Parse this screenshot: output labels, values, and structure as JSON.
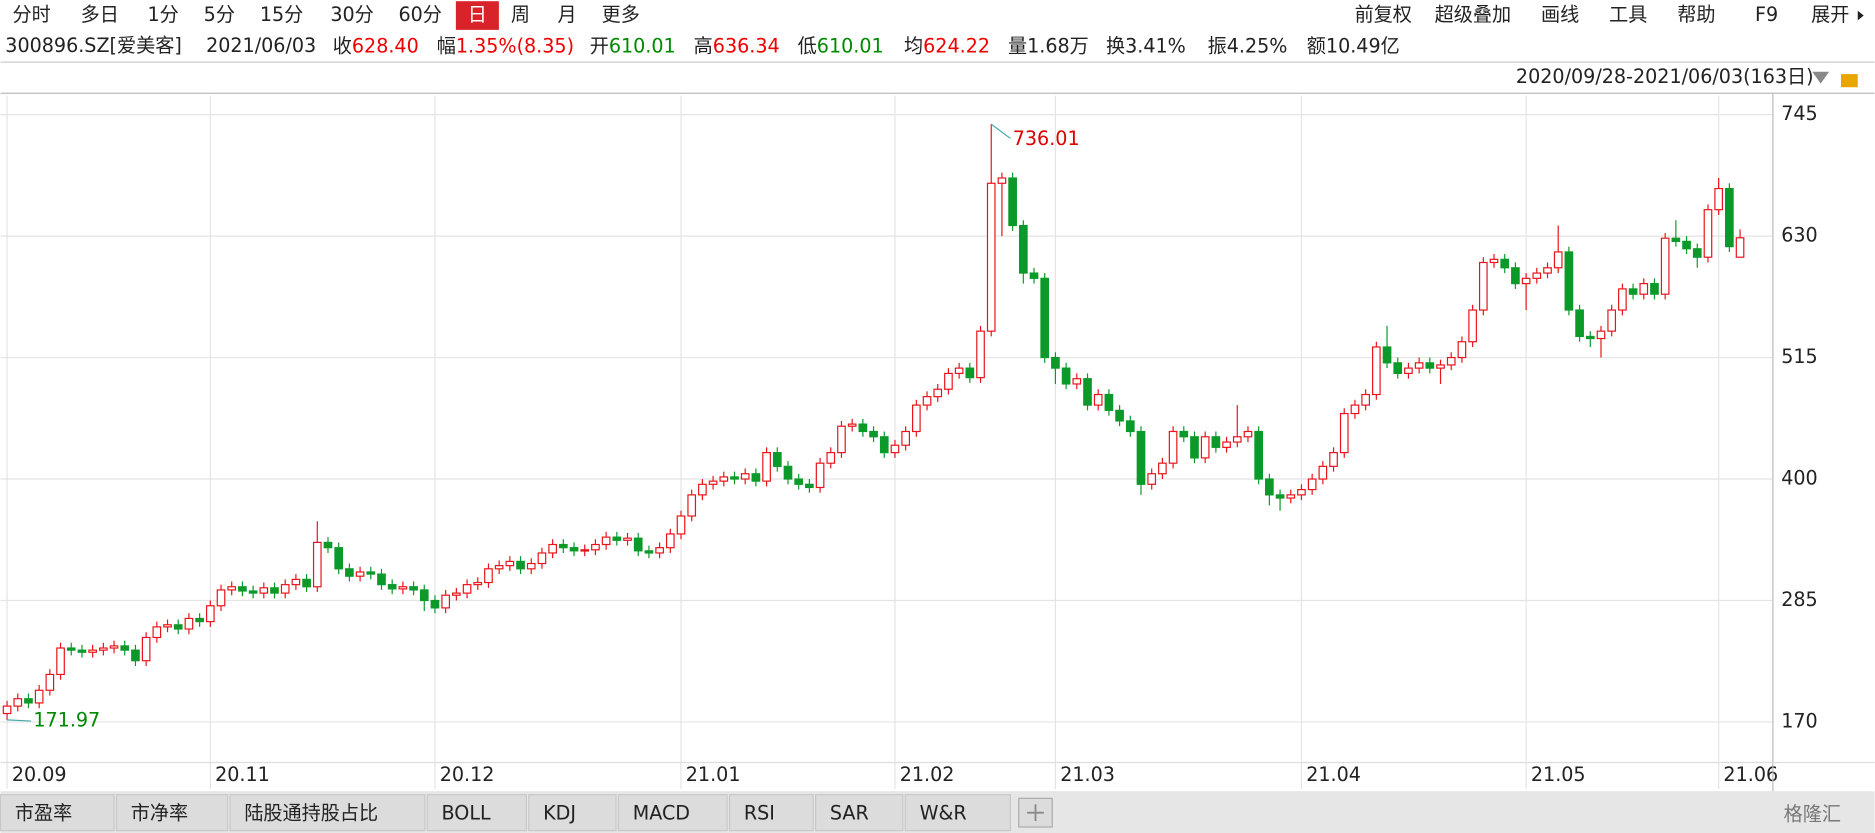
{
  "toolbar": {
    "periods": [
      "分时",
      "多日",
      "1分",
      "5分",
      "15分",
      "30分",
      "60分",
      "日",
      "周",
      "月",
      "更多"
    ],
    "tools": [
      "前复权",
      "超级叠加",
      "画线",
      "工具",
      "帮助",
      "F9",
      "展开"
    ]
  },
  "quote": {
    "code": "300896.SZ[爱美客]",
    "date": "2021/06/03",
    "fields": [
      {
        "label": "收",
        "value": "628.40"
      },
      {
        "label": "幅",
        "value": "1.35%(8.35)"
      },
      {
        "label": "开",
        "value": "610.01"
      },
      {
        "label": "高",
        "value": "636.34"
      },
      {
        "label": "低",
        "value": "610.01"
      },
      {
        "label": "均",
        "value": "624.22"
      },
      {
        "label": "量",
        "value": "1.68万"
      },
      {
        "label": "换",
        "value": "3.41%"
      },
      {
        "label": "振",
        "value": "4.25%"
      },
      {
        "label": "额",
        "value": "10.49亿"
      }
    ]
  },
  "range_label": "2020/09/28-2021/06/03(163日)",
  "chart_data": {
    "type": "candlestick",
    "up_color": "#e8141b",
    "down_color": "#0b9a2a",
    "grid": true,
    "ylim": [
      152,
      763
    ],
    "yticks": [
      170,
      285,
      400,
      515,
      630,
      745
    ],
    "xlim": [
      -0.5,
      162.5
    ],
    "xticks": [
      {
        "value": 0,
        "label": "20.09"
      },
      {
        "value": 19,
        "label": "20.11"
      },
      {
        "value": 40,
        "label": "20.12"
      },
      {
        "value": 63,
        "label": "21.01"
      },
      {
        "value": 83,
        "label": "21.02"
      },
      {
        "value": 98,
        "label": "21.03"
      },
      {
        "value": 121,
        "label": "21.04"
      },
      {
        "value": 142,
        "label": "21.05"
      },
      {
        "value": 160,
        "label": "21.06"
      }
    ],
    "open": [
      178,
      185,
      192,
      188,
      200,
      215,
      240,
      238,
      236,
      238,
      240,
      242,
      238,
      228,
      250,
      260,
      262,
      258,
      268,
      265,
      280,
      295,
      298,
      294,
      292,
      297,
      292,
      300,
      305,
      298,
      340,
      335,
      315,
      308,
      312,
      310,
      300,
      296,
      298,
      295,
      285,
      278,
      290,
      292,
      300,
      302,
      315,
      318,
      322,
      315,
      320,
      330,
      338,
      335,
      332,
      333,
      338,
      345,
      342,
      344,
      332,
      330,
      335,
      348,
      365,
      385,
      395,
      398,
      402,
      400,
      405,
      398,
      425,
      412,
      400,
      395,
      392,
      415,
      425,
      450,
      452,
      445,
      440,
      425,
      432,
      445,
      470,
      478,
      485,
      500,
      505,
      496,
      540,
      680,
      685,
      640,
      595,
      590,
      515,
      505,
      490,
      495,
      470,
      480,
      465,
      455,
      445,
      395,
      405,
      415,
      445,
      440,
      420,
      440,
      430,
      435,
      440,
      445,
      400,
      385,
      382,
      385,
      390,
      400,
      412,
      425,
      462,
      470,
      480,
      525,
      510,
      500,
      505,
      510,
      505,
      508,
      515,
      530,
      560,
      605,
      608,
      600,
      585,
      590,
      595,
      600,
      615,
      560,
      535,
      533,
      540,
      560,
      580,
      575,
      585,
      575,
      628,
      625,
      618,
      610,
      655,
      675,
      610.01
    ],
    "high": [
      190,
      197,
      197,
      205,
      220,
      245,
      245,
      243,
      243,
      245,
      247,
      247,
      243,
      255,
      265,
      267,
      267,
      273,
      273,
      285,
      300,
      303,
      303,
      299,
      302,
      302,
      305,
      310,
      310,
      360,
      345,
      340,
      320,
      317,
      317,
      315,
      305,
      303,
      303,
      300,
      290,
      295,
      297,
      305,
      307,
      320,
      323,
      327,
      327,
      325,
      335,
      343,
      343,
      340,
      338,
      343,
      350,
      350,
      349,
      349,
      337,
      340,
      353,
      370,
      390,
      400,
      403,
      407,
      407,
      410,
      410,
      430,
      430,
      417,
      405,
      400,
      420,
      430,
      455,
      457,
      457,
      450,
      445,
      437,
      450,
      475,
      483,
      490,
      505,
      510,
      510,
      545,
      736.01,
      690,
      690,
      645,
      600,
      595,
      520,
      510,
      500,
      500,
      485,
      485,
      470,
      460,
      450,
      410,
      420,
      450,
      450,
      445,
      445,
      445,
      440,
      470,
      450,
      450,
      405,
      390,
      390,
      395,
      405,
      417,
      430,
      467,
      475,
      485,
      530,
      545,
      515,
      510,
      515,
      515,
      513,
      520,
      535,
      565,
      610,
      613,
      613,
      605,
      595,
      600,
      605,
      640,
      620,
      565,
      540,
      545,
      565,
      585,
      585,
      590,
      590,
      633,
      645,
      630,
      623,
      660,
      685,
      680,
      636.34
    ],
    "low": [
      171.97,
      180,
      183,
      183,
      195,
      210,
      233,
      231,
      231,
      233,
      235,
      233,
      223,
      223,
      245,
      255,
      253,
      253,
      260,
      260,
      275,
      290,
      289,
      287,
      287,
      287,
      287,
      295,
      293,
      293,
      330,
      310,
      303,
      303,
      305,
      295,
      291,
      291,
      290,
      275,
      273,
      273,
      285,
      287,
      295,
      297,
      310,
      313,
      310,
      310,
      315,
      325,
      330,
      327,
      327,
      328,
      333,
      337,
      337,
      327,
      325,
      325,
      330,
      343,
      360,
      380,
      390,
      393,
      395,
      395,
      393,
      393,
      407,
      395,
      390,
      387,
      387,
      410,
      420,
      445,
      440,
      435,
      420,
      420,
      427,
      440,
      465,
      473,
      480,
      495,
      491,
      491,
      535,
      630,
      635,
      585,
      585,
      510,
      490,
      485,
      485,
      465,
      465,
      460,
      450,
      440,
      385,
      390,
      400,
      410,
      435,
      415,
      415,
      425,
      425,
      430,
      435,
      395,
      375,
      370,
      377,
      380,
      385,
      395,
      407,
      420,
      457,
      465,
      475,
      505,
      495,
      495,
      500,
      500,
      490,
      503,
      510,
      525,
      555,
      600,
      595,
      580,
      560,
      585,
      590,
      595,
      555,
      530,
      525,
      515,
      535,
      555,
      570,
      570,
      570,
      570,
      620,
      613,
      600,
      605,
      650,
      615,
      610.01
    ],
    "close": [
      185,
      192,
      188,
      200,
      215,
      240,
      238,
      236,
      238,
      240,
      242,
      238,
      228,
      250,
      260,
      262,
      258,
      268,
      265,
      280,
      295,
      298,
      294,
      292,
      297,
      292,
      300,
      305,
      298,
      340,
      335,
      315,
      308,
      312,
      310,
      300,
      296,
      298,
      295,
      285,
      278,
      290,
      292,
      300,
      302,
      315,
      318,
      322,
      315,
      320,
      330,
      338,
      335,
      332,
      333,
      338,
      345,
      342,
      344,
      332,
      330,
      335,
      348,
      365,
      385,
      395,
      398,
      402,
      400,
      405,
      398,
      425,
      412,
      400,
      395,
      392,
      415,
      425,
      450,
      452,
      445,
      440,
      425,
      432,
      445,
      470,
      478,
      485,
      500,
      505,
      496,
      540,
      680,
      685,
      640,
      595,
      590,
      515,
      505,
      490,
      495,
      470,
      480,
      465,
      455,
      445,
      395,
      405,
      415,
      445,
      440,
      420,
      440,
      430,
      435,
      440,
      445,
      400,
      385,
      382,
      385,
      390,
      400,
      412,
      425,
      462,
      470,
      480,
      525,
      510,
      500,
      505,
      510,
      505,
      508,
      515,
      530,
      560,
      605,
      608,
      600,
      585,
      590,
      595,
      600,
      615,
      560,
      535,
      533,
      540,
      560,
      580,
      575,
      585,
      575,
      628,
      625,
      618,
      610,
      655,
      675,
      620.05,
      628.4
    ]
  },
  "indicator_tabs": [
    "市盈率",
    "市净率",
    "陆股通持股占比",
    "BOLL",
    "KDJ",
    "MACD",
    "RSI",
    "SAR",
    "W&R"
  ],
  "watermark": "格隆汇"
}
